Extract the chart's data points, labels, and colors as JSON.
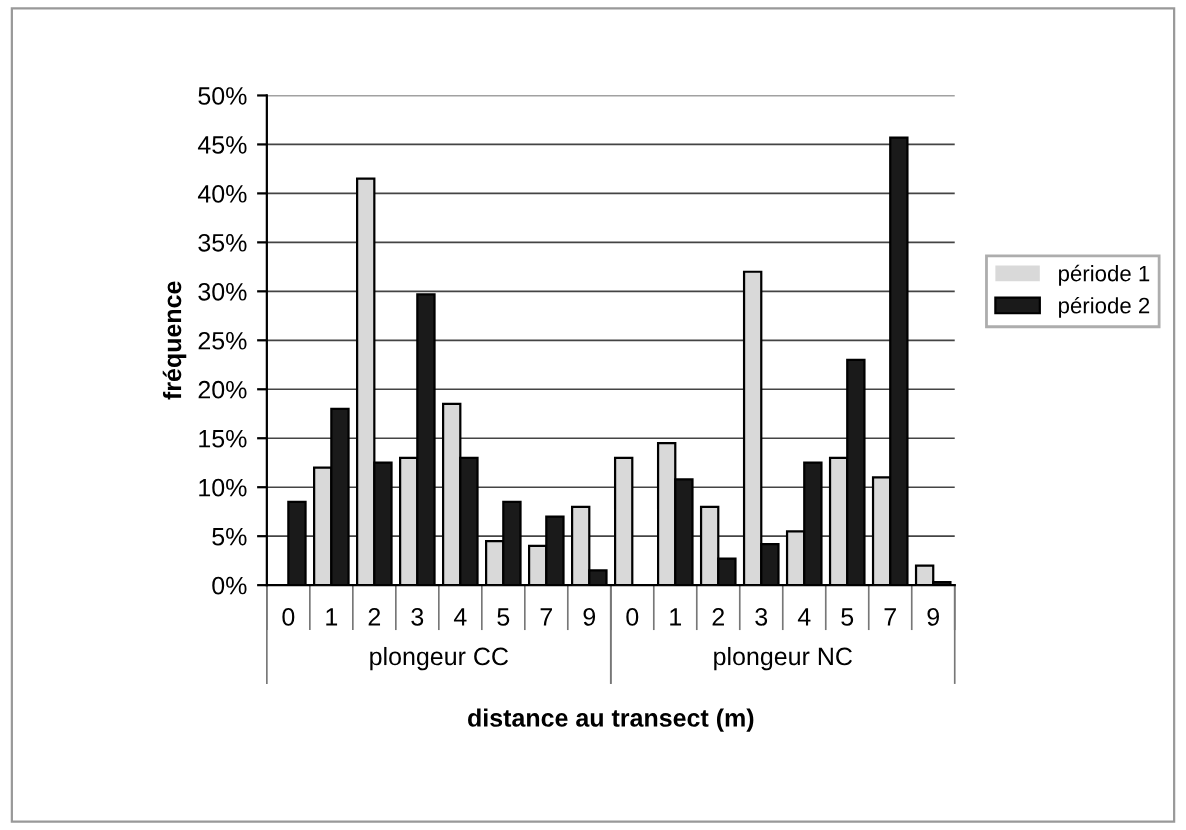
{
  "chart_data": {
    "type": "bar",
    "xlabel": "distance au transect (m)",
    "ylabel": "fréquence",
    "categories": [
      "0",
      "1",
      "2",
      "3",
      "4",
      "5",
      "7",
      "9",
      "0",
      "1",
      "2",
      "3",
      "4",
      "5",
      "7",
      "9"
    ],
    "series": [
      {
        "name": "période 1",
        "color": "#d9d9d9",
        "values": [
          0,
          12,
          41.5,
          13,
          18.5,
          4.5,
          4,
          8,
          13,
          14.5,
          8,
          32,
          5.5,
          13,
          11,
          2
        ]
      },
      {
        "name": "période 2",
        "color": "#1a1a1a",
        "values": [
          8.5,
          18,
          12.5,
          29.7,
          13,
          8.5,
          7,
          1.5,
          0,
          10.8,
          2.7,
          4.2,
          12.5,
          23,
          45.7,
          0.3
        ]
      }
    ],
    "ylim": [
      0,
      50
    ],
    "yticks": [
      {
        "value": 0,
        "label": "0%"
      },
      {
        "value": 5,
        "label": "5%"
      },
      {
        "value": 10,
        "label": "10%"
      },
      {
        "value": 15,
        "label": "15%"
      },
      {
        "value": 20,
        "label": "20%"
      },
      {
        "value": 25,
        "label": "25%"
      },
      {
        "value": 30,
        "label": "30%"
      },
      {
        "value": 35,
        "label": "35%"
      },
      {
        "value": 40,
        "label": "40%"
      },
      {
        "value": 45,
        "label": "45%"
      },
      {
        "value": 50,
        "label": "50%"
      }
    ],
    "annotations": [
      "plongeur CC",
      "plongeur NC"
    ],
    "grid": "y",
    "legend": "right"
  }
}
